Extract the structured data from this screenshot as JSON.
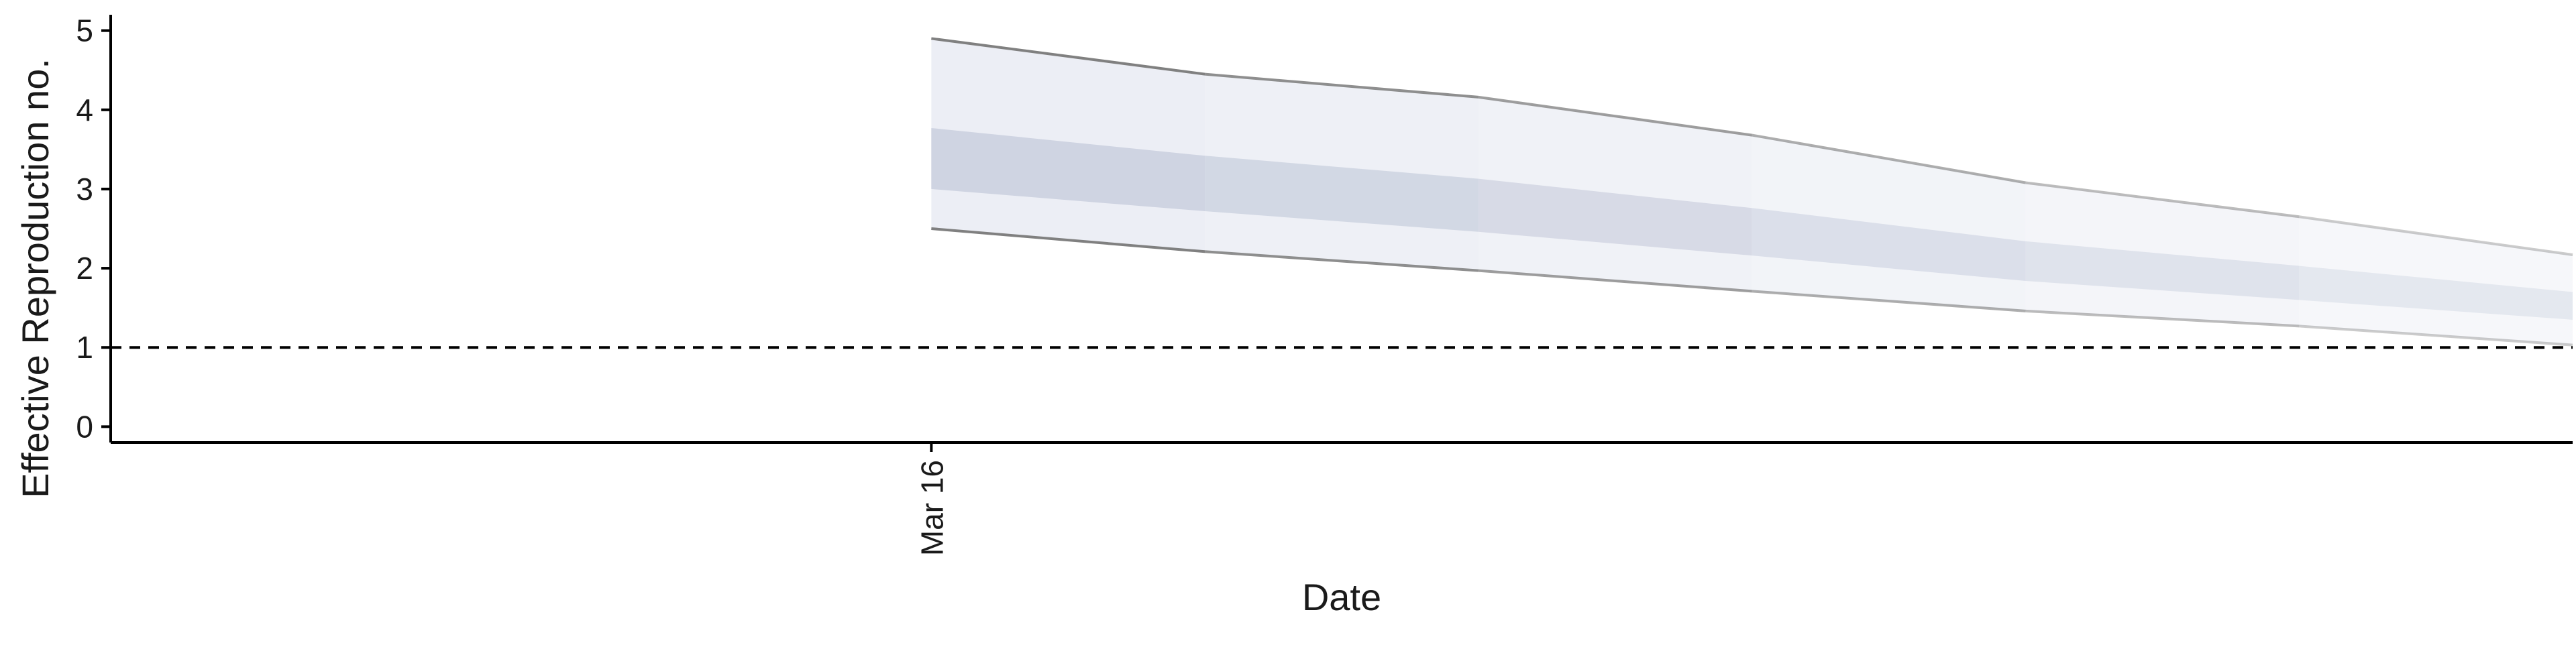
{
  "chart_data": {
    "type": "area",
    "title": "",
    "xlabel": "Date",
    "ylabel": "Effective Reproduction no.",
    "x_tick_labels": [
      "Mar 16"
    ],
    "y_ticks": [
      0,
      1,
      2,
      3,
      4,
      5
    ],
    "xlim": [
      "2020-03-13",
      "2020-03-22"
    ],
    "ylim": [
      -0.2,
      5.2
    ],
    "reference_line": {
      "y": 1,
      "style": "dashed",
      "color": "#000000"
    },
    "grid": false,
    "legend": "none",
    "x": [
      "2020-03-16",
      "2020-03-17",
      "2020-03-18",
      "2020-03-19",
      "2020-03-20",
      "2020-03-21",
      "2020-03-22"
    ],
    "series": [
      {
        "outer_upper": [
          4.9,
          4.45,
          4.16,
          3.68,
          3.08,
          2.65,
          2.17
        ],
        "outer_lower": [
          2.5,
          2.21,
          1.97,
          1.71,
          1.46,
          1.27,
          1.03
        ],
        "inner_upper": [
          3.77,
          3.42,
          3.13,
          2.76,
          2.34,
          2.03,
          1.7
        ],
        "inner_lower": [
          3.0,
          2.72,
          2.46,
          2.16,
          1.84,
          1.6,
          1.35
        ]
      }
    ],
    "colors": {
      "band_outer": "#eceef5",
      "band_inner": "#cfd4e2",
      "outline": "#808080",
      "axis": "#000000"
    }
  }
}
